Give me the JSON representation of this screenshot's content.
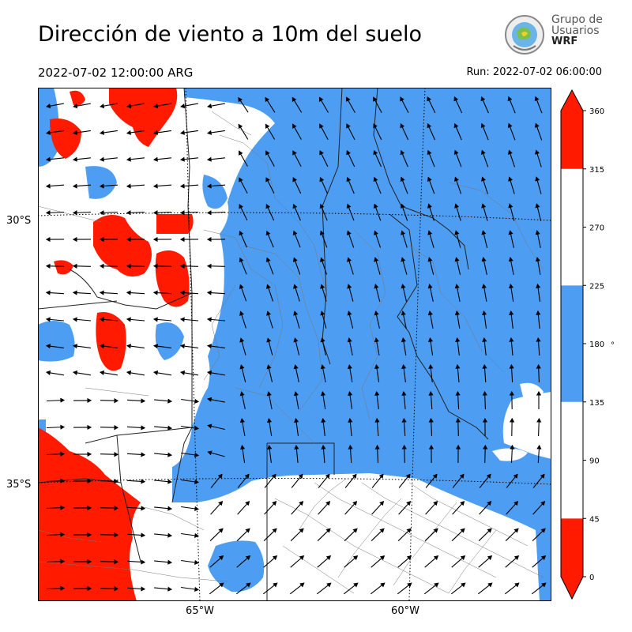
{
  "header": {
    "title": "Dirección de viento a 10m del suelo",
    "valid_time": "2022-07-02 12:00:00 ARG",
    "run_time": "Run: 2022-07-02 06:00:00"
  },
  "logo": {
    "line1": "Grupo de",
    "line2": "Usuarios",
    "line3": "WRF"
  },
  "axes": {
    "lat_labels": [
      "30°S",
      "35°S"
    ],
    "lon_labels": [
      "65°W",
      "60°W"
    ]
  },
  "colorbar": {
    "unit": "°",
    "ticks": [
      "360",
      "315",
      "270",
      "225",
      "180",
      "135",
      "90",
      "45",
      "0"
    ],
    "bands": [
      {
        "from": 0,
        "to": 45,
        "color": "#ff1a00"
      },
      {
        "from": 45,
        "to": 135,
        "color": "#ffffff"
      },
      {
        "from": 135,
        "to": 225,
        "color": "#4d9ef2"
      },
      {
        "from": 225,
        "to": 315,
        "color": "#ffffff"
      },
      {
        "from": 315,
        "to": 360,
        "color": "#ff1a00"
      }
    ]
  },
  "colors": {
    "red": "#ff1a00",
    "blue": "#4d9ef2",
    "white": "#ffffff"
  }
}
